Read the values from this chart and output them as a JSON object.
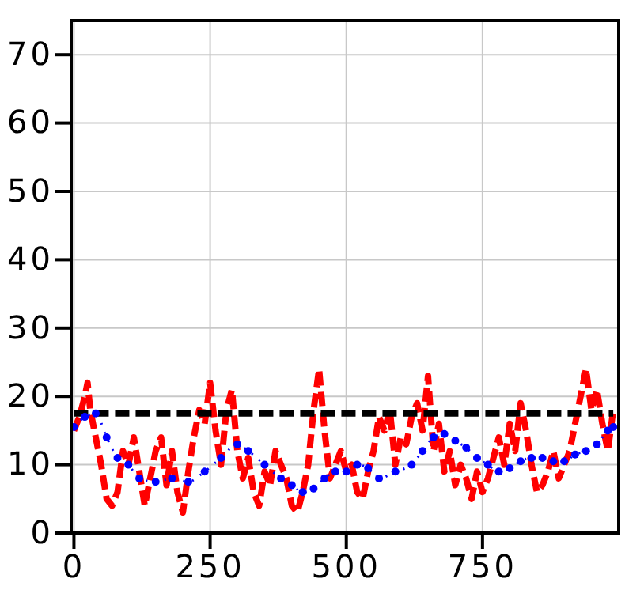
{
  "chart_data": {
    "type": "line",
    "xlim": [
      -5,
      1000
    ],
    "ylim": [
      0,
      75
    ],
    "xticks": [
      0,
      250,
      500,
      750
    ],
    "yticks": [
      0,
      10,
      20,
      30,
      40,
      50,
      60,
      70
    ],
    "grid": true,
    "series": [
      {
        "color": "#ff0000",
        "line_style": "dashed",
        "marker": "none",
        "x": [
          0,
          10,
          20,
          25,
          30,
          40,
          50,
          60,
          70,
          80,
          90,
          100,
          110,
          120,
          130,
          140,
          150,
          160,
          170,
          180,
          190,
          200,
          210,
          220,
          230,
          240,
          250,
          260,
          270,
          280,
          290,
          300,
          310,
          320,
          330,
          340,
          350,
          360,
          370,
          380,
          390,
          400,
          410,
          420,
          430,
          440,
          450,
          460,
          470,
          480,
          490,
          500,
          510,
          520,
          530,
          540,
          550,
          560,
          570,
          580,
          590,
          600,
          610,
          620,
          630,
          640,
          650,
          660,
          670,
          680,
          690,
          700,
          710,
          720,
          730,
          740,
          750,
          760,
          770,
          780,
          790,
          800,
          810,
          820,
          830,
          840,
          850,
          860,
          870,
          880,
          890,
          900,
          910,
          920,
          930,
          940,
          950,
          960,
          970,
          980,
          990
        ],
        "values": [
          15,
          17,
          20,
          22,
          18,
          14,
          10,
          5,
          4,
          6,
          12,
          10,
          14,
          9,
          4,
          8,
          12,
          14,
          7,
          12,
          6,
          3,
          9,
          14,
          18,
          16,
          22,
          15,
          10,
          18,
          21,
          12,
          8,
          11,
          6,
          4,
          9,
          7,
          12,
          10,
          8,
          4,
          3,
          6,
          10,
          18,
          24,
          15,
          8,
          10,
          12,
          9,
          10,
          6,
          5,
          9,
          12,
          17,
          15,
          18,
          10,
          14,
          13,
          17,
          19,
          15,
          23,
          12,
          16,
          9,
          12,
          7,
          10,
          8,
          5,
          9,
          6,
          8,
          11,
          14,
          10,
          16,
          12,
          19,
          15,
          10,
          6,
          7,
          9,
          12,
          8,
          10,
          12,
          16,
          20,
          24,
          18,
          21,
          16,
          12,
          18
        ]
      },
      {
        "color": "#000000",
        "line_style": "dashed",
        "marker": "none",
        "x": [
          0,
          990
        ],
        "values": [
          17.5,
          17.5
        ]
      },
      {
        "color": "#0000ff",
        "line_style": "dotted",
        "marker": "circle",
        "x": [
          0,
          20,
          40,
          60,
          80,
          100,
          120,
          150,
          180,
          210,
          240,
          270,
          300,
          320,
          350,
          380,
          400,
          420,
          440,
          460,
          480,
          500,
          520,
          540,
          560,
          590,
          620,
          640,
          660,
          680,
          700,
          720,
          740,
          760,
          780,
          800,
          820,
          840,
          860,
          880,
          900,
          920,
          940,
          960,
          980,
          990
        ],
        "values": [
          15.5,
          17,
          17.5,
          14,
          11,
          10,
          8,
          7.5,
          8,
          7.5,
          9,
          11,
          13,
          12,
          10,
          8,
          7,
          6,
          6.5,
          8,
          9,
          9,
          10,
          9.5,
          8,
          9,
          10,
          12,
          14,
          14.5,
          13.5,
          12.5,
          11,
          10,
          9,
          9.5,
          10.5,
          11,
          11,
          10.5,
          10.5,
          11.5,
          12,
          13,
          15,
          15.5
        ]
      }
    ]
  }
}
